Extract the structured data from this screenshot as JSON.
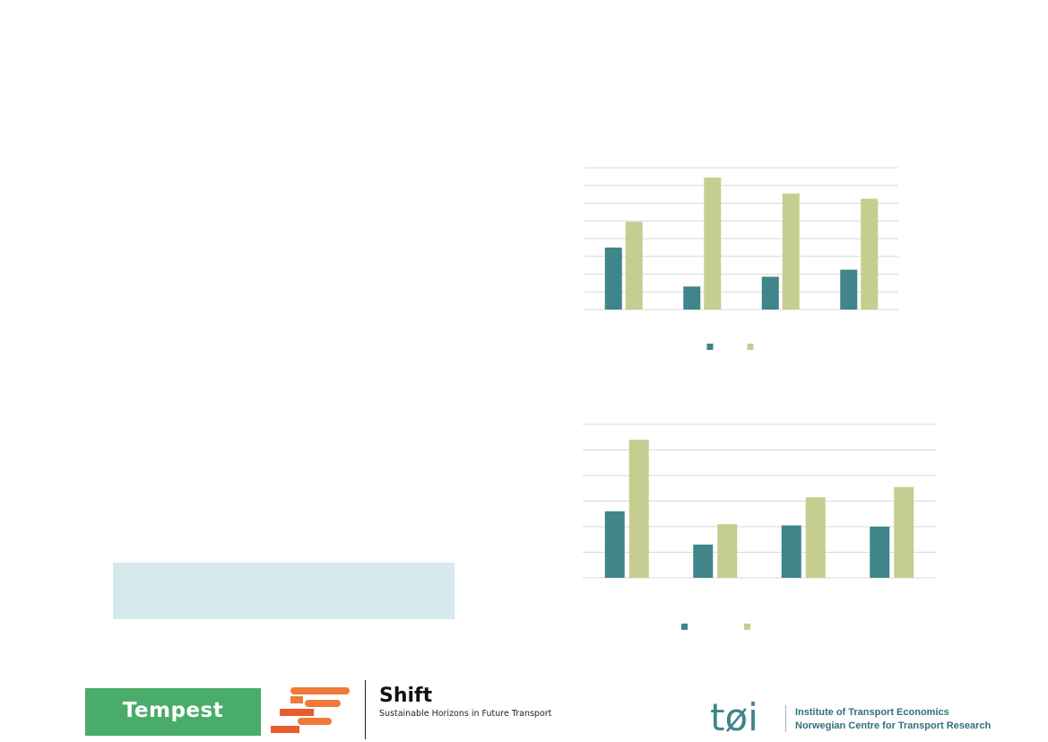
{
  "chart_data": [
    {
      "type": "bar",
      "categories": [
        "",
        "",
        "",
        ""
      ],
      "series": [
        {
          "color": "#3f8589",
          "values": [
            35,
            13,
            18.5,
            22.5
          ]
        },
        {
          "color": "#c5cd90",
          "values": [
            49.5,
            74.5,
            65.5,
            62.5
          ]
        }
      ],
      "ylim": [
        0,
        80
      ],
      "grid": true,
      "legend": "bottom-center"
    },
    {
      "type": "bar",
      "categories": [
        "",
        "",
        "",
        ""
      ],
      "series": [
        {
          "color": "#3f8589",
          "values": [
            26,
            13,
            20.5,
            20
          ]
        },
        {
          "color": "#c5cd90",
          "values": [
            54,
            21,
            31.5,
            35.5
          ]
        }
      ],
      "ylim": [
        0,
        60
      ],
      "grid": true,
      "legend": "bottom-center"
    }
  ],
  "logos": {
    "tempest": "Tempest",
    "shift_title": "Shift",
    "shift_subtitle": "Sustainable Horizons in Future Transport",
    "toi_line1": "Institute of Transport Economics",
    "toi_line2": "Norwegian Centre for Transport Research",
    "toi_mark": "tøi"
  },
  "colors": {
    "teal": "#3f8589",
    "olive": "#c5cd90",
    "highlight_box": "#d6e9ec",
    "tempest_green": "#4aac6a",
    "shift_orange": "#ef7a3a"
  }
}
